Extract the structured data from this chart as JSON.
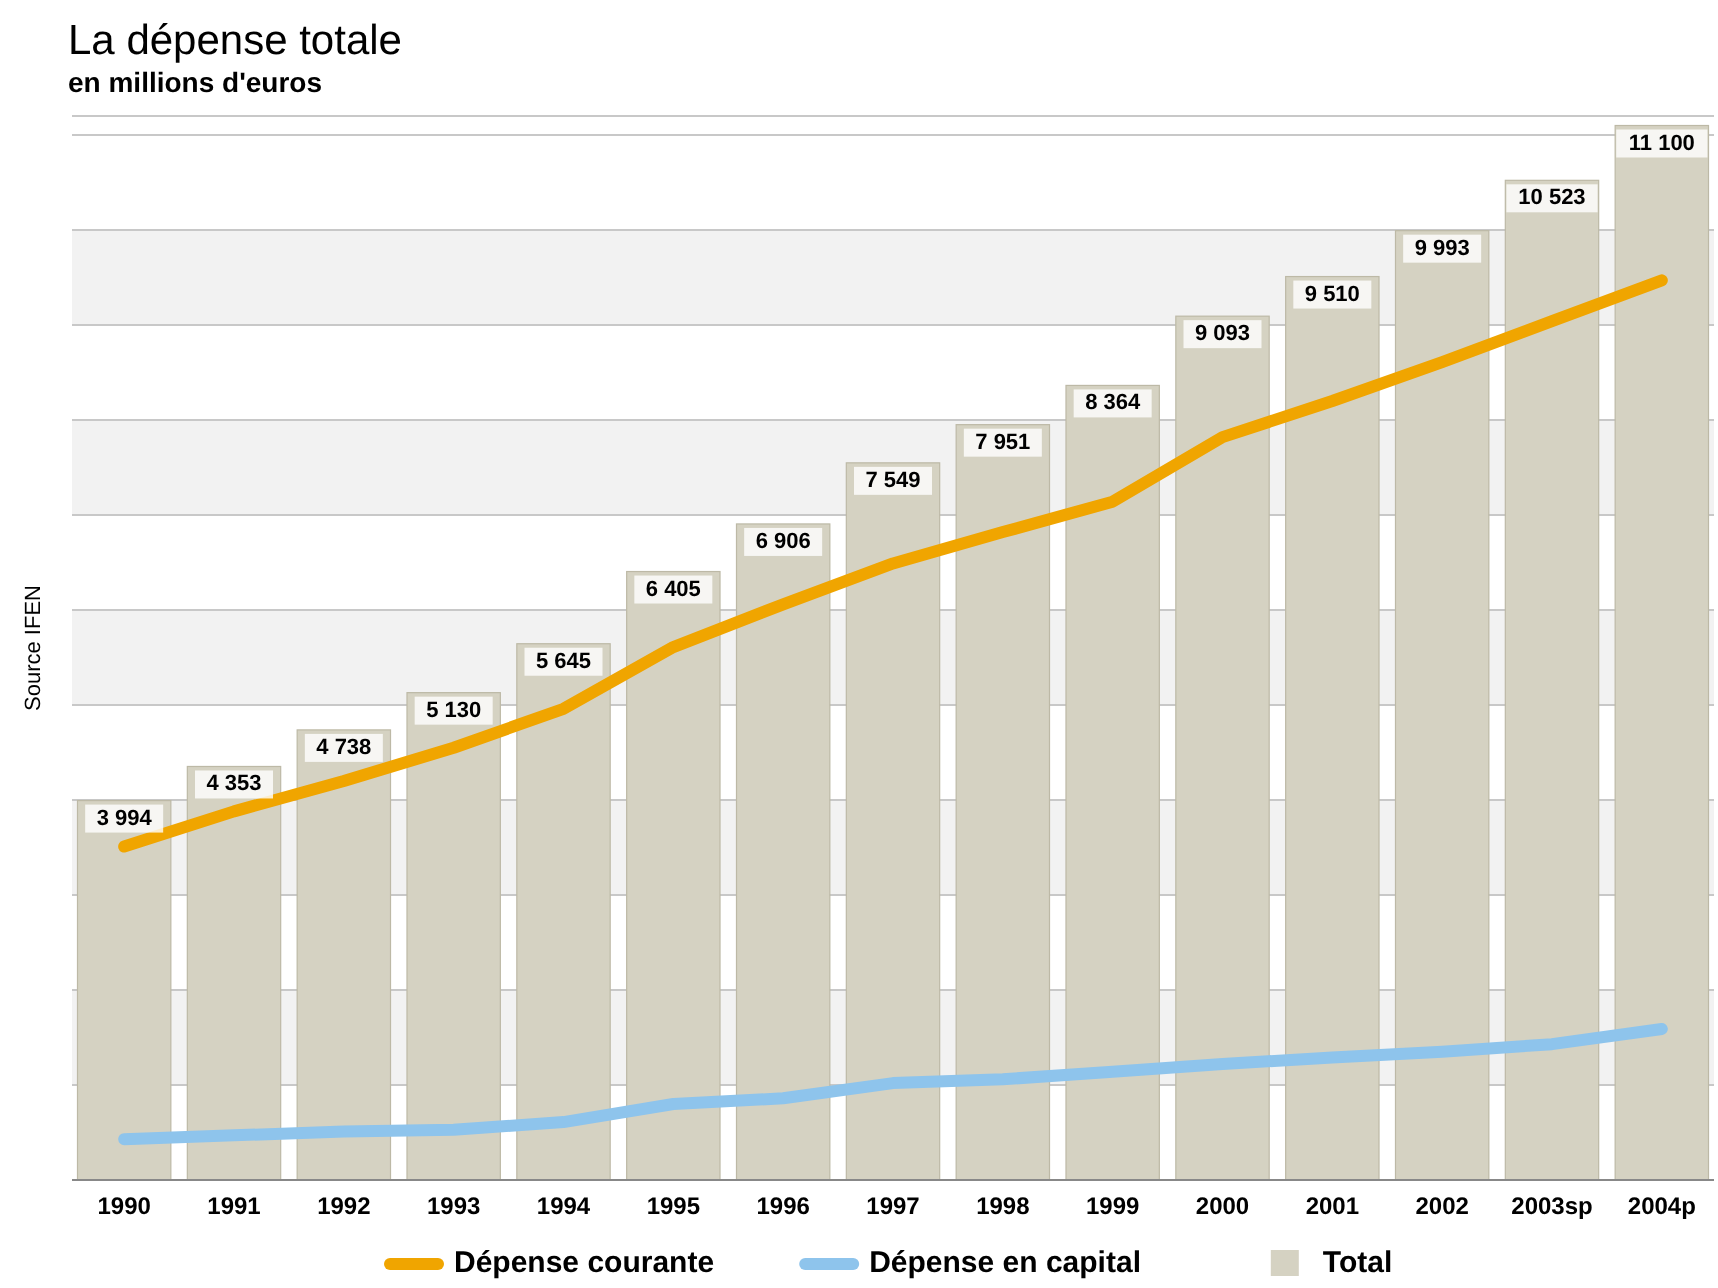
{
  "chart_data": {
    "type": "bar",
    "title": "La dépense totale",
    "subtitle": "en millions d'euros",
    "categories": [
      "1990",
      "1991",
      "1992",
      "1993",
      "1994",
      "1995",
      "1996",
      "1997",
      "1998",
      "1999",
      "2000",
      "2001",
      "2002",
      "2003sp",
      "2004p"
    ],
    "series": [
      {
        "name": "Dépense courante",
        "type": "line",
        "color": "#f0a500",
        "values": [
          3510,
          3880,
          4200,
          4550,
          4960,
          5610,
          6060,
          6490,
          6820,
          7140,
          7820,
          8200,
          8610,
          9040,
          9470
        ]
      },
      {
        "name": "Dépense en capital",
        "type": "line",
        "color": "#8ec4ec",
        "values": [
          430,
          470,
          510,
          530,
          610,
          800,
          860,
          1020,
          1060,
          1140,
          1220,
          1290,
          1350,
          1430,
          1590
        ]
      },
      {
        "name": "Total",
        "color": "#d5d2c2",
        "values": [
          3994,
          4353,
          4738,
          5130,
          5645,
          6405,
          6906,
          7549,
          7951,
          8364,
          9093,
          9510,
          9993,
          10523,
          11100
        ],
        "value_labels": [
          "3 994",
          "4 353",
          "4 738",
          "5 130",
          "5 645",
          "6 405",
          "6 906",
          "7 549",
          "7 951",
          "8 364",
          "9 093",
          "9 510",
          "9 993",
          "10 523",
          "11 100"
        ]
      }
    ],
    "ylim": [
      0,
      11200
    ],
    "yticks": [
      {
        "value": 0,
        "label": null
      },
      {
        "value": 1000,
        "label": null
      },
      {
        "value": 2000,
        "label": null
      },
      {
        "value": 3000,
        "label": null
      },
      {
        "value": 4000,
        "label": null
      },
      {
        "value": 5000,
        "label": null
      },
      {
        "value": 6000,
        "label": null
      },
      {
        "value": 7000,
        "label": null
      },
      {
        "value": 8000,
        "label": null
      },
      {
        "value": 9000,
        "label": null
      },
      {
        "value": 10000,
        "label": null
      },
      {
        "value": 11000,
        "label": null
      }
    ],
    "grid": "y",
    "legend": "bottom",
    "annotations": [
      "Source IFEN"
    ]
  }
}
